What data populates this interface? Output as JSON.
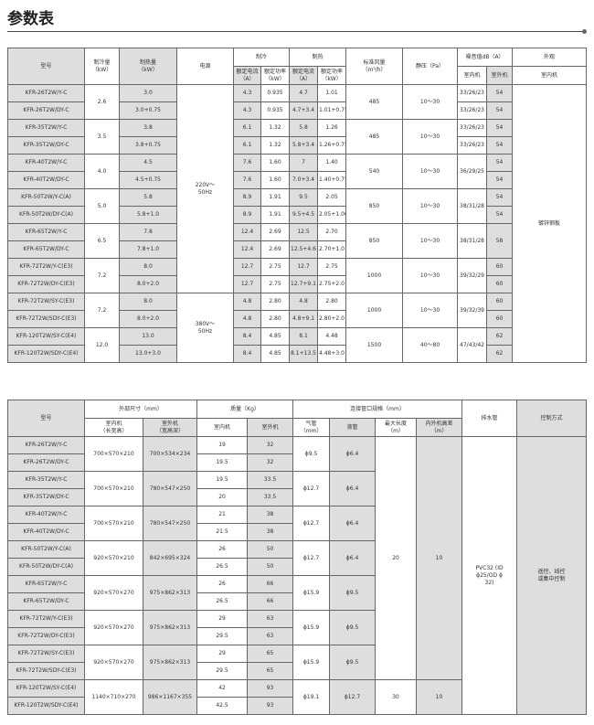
{
  "title": "参数表",
  "table1": {
    "headers": {
      "model": "型号",
      "cool": "制冷量\n（kW）",
      "heat": "制热量\n（kW）",
      "power": "电源",
      "cooling": "制冷",
      "heating": "制热",
      "current": "额定电流\n（A）",
      "pw": "额定功率\n（kW）",
      "airflow": "标准风量\n（m³/h）",
      "pressure": "静压（Pa）",
      "noise": "噪音值dB（A）",
      "indoor": "室内机",
      "outdoor": "室外机",
      "appearance": "外观",
      "app_sub": "室内机"
    },
    "power_groups": [
      "220V～\n50Hz",
      "380V～\n50Hz"
    ],
    "appearance": "镀锌钢板",
    "pairs": [
      {
        "cool": "2.6",
        "airflow": "485",
        "pressure": "10～30",
        "noise_in": [
          "33/26/23",
          "33/26/23"
        ],
        "noise_out": [
          "54",
          "54"
        ],
        "rows": [
          {
            "model": "KFR-26T2W/Y-C",
            "heat": "3.0",
            "cc": "4.3",
            "cp": "0.935",
            "hc": "4.7",
            "hp": "1.01"
          },
          {
            "model": "KFR-26T2W/DY-C",
            "heat": "3.0+0.75",
            "cc": "4.3",
            "cp": "0.935",
            "hc": "4.7+3.4",
            "hp": "1.01+0.75"
          }
        ]
      },
      {
        "cool": "3.5",
        "airflow": "485",
        "pressure": "10～30",
        "noise_in": [
          "33/26/23",
          "33/26/23"
        ],
        "noise_out": [
          "54",
          "54"
        ],
        "rows": [
          {
            "model": "KFR-35T2W/Y-C",
            "heat": "3.8",
            "cc": "6.1",
            "cp": "1.32",
            "hc": "5.8",
            "hp": "1.26"
          },
          {
            "model": "KFR-35T2W/DY-C",
            "heat": "3.8+0.75",
            "cc": "6.1",
            "cp": "1.32",
            "hc": "5.8+3.4",
            "hp": "1.26+0.75"
          }
        ]
      },
      {
        "cool": "4.0",
        "airflow": "540",
        "pressure": "10～30",
        "noise_in": "36/29/25",
        "noise_out": [
          "54",
          "54"
        ],
        "rows": [
          {
            "model": "KFR-40T2W/Y-C",
            "heat": "4.5",
            "cc": "7.6",
            "cp": "1.60",
            "hc": "7",
            "hp": "1.40"
          },
          {
            "model": "KFR-40T2W/DY-C",
            "heat": "4.5+0.75",
            "cc": "7.6",
            "cp": "1.60",
            "hc": "7.0+3.4",
            "hp": "1.40+0.75"
          }
        ]
      },
      {
        "cool": "5.0",
        "airflow": "850",
        "pressure": "10～30",
        "noise_in": "38/31/28",
        "noise_out": [
          "54",
          "54"
        ],
        "rows": [
          {
            "model": "KFR-50T2W/Y-C(A)",
            "heat": "5.8",
            "cc": "8.9",
            "cp": "1.91",
            "hc": "9.5",
            "hp": "2.05"
          },
          {
            "model": "KFR-50T2W/DY-C(A)",
            "heat": "5.8+1.0",
            "cc": "8.9",
            "cp": "1.91",
            "hc": "9.5+4.5",
            "hp": "2.05+1.00"
          }
        ]
      },
      {
        "cool": "6.5",
        "airflow": "850",
        "pressure": "10～30",
        "noise_in": "38/31/28",
        "noise_out": "58",
        "rows": [
          {
            "model": "KFR-65T2W/Y-C",
            "heat": "7.8",
            "cc": "12.4",
            "cp": "2.69",
            "hc": "12.5",
            "hp": "2.70"
          },
          {
            "model": "KFR-65T2W/DY-C",
            "heat": "7.8+1.0",
            "cc": "12.4",
            "cp": "2.69",
            "hc": "12.5+4.6",
            "hp": "2.70+1.0"
          }
        ]
      },
      {
        "cool": "7.2",
        "airflow": "1000",
        "pressure": "10～30",
        "noise_in": "39/32/29",
        "noise_out": [
          "60",
          "60"
        ],
        "rows": [
          {
            "model": "KFR-72T2W/Y-C(E3)",
            "heat": "8.0",
            "cc": "12.7",
            "cp": "2.75",
            "hc": "12.7",
            "hp": "2.75"
          },
          {
            "model": "KFR-72T2W/DY-C(E3)",
            "heat": "8.0+2.0",
            "cc": "12.7",
            "cp": "2.75",
            "hc": "12.7+9.1",
            "hp": "2.75+2.0"
          }
        ]
      },
      {
        "cool": "7.2",
        "airflow": "1000",
        "pressure": "10～30",
        "noise_in": "39/32/39",
        "noise_out": [
          "60",
          "60"
        ],
        "rows": [
          {
            "model": "KFR-72T2W/SY-C(E3)",
            "heat": "8.0",
            "cc": "4.8",
            "cp": "2.80",
            "hc": "4.8",
            "hp": "2.80"
          },
          {
            "model": "KFR-72T2W/SDY-C(E3)",
            "heat": "8.0+2.0",
            "cc": "4.8",
            "cp": "2.80",
            "hc": "4.8+9.1",
            "hp": "2.80+2.0"
          }
        ]
      },
      {
        "cool": "12.0",
        "airflow": "1500",
        "pressure": "40～80",
        "noise_in": "47/43/42",
        "noise_out": [
          "62",
          "62"
        ],
        "rows": [
          {
            "model": "KFR-120T2W/SY-C(E4)",
            "heat": "13.0",
            "cc": "8.4",
            "cp": "4.85",
            "hc": "8.1",
            "hp": "4.48"
          },
          {
            "model": "KFR-120T2W/SDY-C(E4)",
            "heat": "13.0+3.0",
            "cc": "8.4",
            "cp": "4.85",
            "hc": "8.1+13.5",
            "hp": "4.48+3.0"
          }
        ]
      }
    ]
  },
  "table2": {
    "headers": {
      "model": "型号",
      "dims": "外部尺寸（mm）",
      "dim_in": "室内机\n（长宽高）",
      "dim_out": "室外机\n（宽高深）",
      "weight": "质量（Kg）",
      "w_in": "室内机",
      "w_out": "室外机",
      "pipe": "连接管口规格（mm）",
      "gas": "气管\n（mm）",
      "liquid": "液管",
      "maxlen": "最大长度\n（m）",
      "height": "内外机高差\n（m）",
      "drain": "排水管",
      "control": "控制方式"
    },
    "drain": "PVC32 (ID\nϕ25/OD ϕ\n32)",
    "control": "遥控、线控\n或集中控制",
    "len_groups": [
      {
        "maxlen": "20",
        "height": "10"
      },
      {
        "maxlen": "30",
        "height": "10"
      }
    ],
    "pairs": [
      {
        "dim_in": "700×570×210",
        "dim_out": "700×534×234",
        "gas": "ϕ9.5",
        "liquid": "ϕ6.4",
        "rows": [
          {
            "model": "KFR-26T2W/Y-C",
            "w_in": "19",
            "w_out": "32"
          },
          {
            "model": "KFR-26T2W/DY-C",
            "w_in": "19.5",
            "w_out": "32"
          }
        ]
      },
      {
        "dim_in": "700×570×210",
        "dim_out": "780×547×250",
        "gas": "ϕ12.7",
        "liquid": "ϕ6.4",
        "rows": [
          {
            "model": "KFR-35T2W/Y-C",
            "w_in": "19.5",
            "w_out": "33.5"
          },
          {
            "model": "KFR-35T2W/DY-C",
            "w_in": "20",
            "w_out": "33.5"
          }
        ]
      },
      {
        "dim_in": "700×570×210",
        "dim_out": "780×547×250",
        "gas": "ϕ12.7",
        "liquid": "ϕ6.4",
        "rows": [
          {
            "model": "KFR-40T2W/Y-C",
            "w_in": "21",
            "w_out": "38"
          },
          {
            "model": "KFR-40T2W/DY-C",
            "w_in": "21.5",
            "w_out": "38"
          }
        ]
      },
      {
        "dim_in": "920×570×210",
        "dim_out": "842×695×324",
        "gas": "ϕ12.7",
        "liquid": "ϕ6.4",
        "rows": [
          {
            "model": "KFR-50T2W/Y-C(A)",
            "w_in": "26",
            "w_out": "50"
          },
          {
            "model": "KFR-50T2W/DY-C(A)",
            "w_in": "26.5",
            "w_out": "50"
          }
        ]
      },
      {
        "dim_in": "920×570×270",
        "dim_out": "975×862×313",
        "gas": "ϕ15.9",
        "liquid": "ϕ9.5",
        "rows": [
          {
            "model": "KFR-65T2W/Y-C",
            "w_in": "26",
            "w_out": "66"
          },
          {
            "model": "KFR-65T2W/DY-C",
            "w_in": "26.5",
            "w_out": "66"
          }
        ]
      },
      {
        "dim_in": "920×570×270",
        "dim_out": "975×862×313",
        "gas": "ϕ15.9",
        "liquid": "ϕ9.5",
        "rows": [
          {
            "model": "KFR-72T2W/Y-C(E3)",
            "w_in": "29",
            "w_out": "63"
          },
          {
            "model": "KFR-72T2W/DY-C(E3)",
            "w_in": "29.5",
            "w_out": "63"
          }
        ]
      },
      {
        "dim_in": "920×570×270",
        "dim_out": "975×862×313",
        "gas": "ϕ15.9",
        "liquid": "ϕ9.5",
        "rows": [
          {
            "model": "KFR-72T2W/SY-C(E3)",
            "w_in": "29",
            "w_out": "65"
          },
          {
            "model": "KFR-72T2W/SDY-C(E3)",
            "w_in": "29.5",
            "w_out": "65"
          }
        ]
      },
      {
        "dim_in": "1140×710×270",
        "dim_out": "986×1167×355",
        "gas": "ϕ19.1",
        "liquid": "ϕ12.7",
        "rows": [
          {
            "model": "KFR-120T2W/SY-C(E4)",
            "w_in": "42",
            "w_out": "93"
          },
          {
            "model": "KFR-120T2W/SDY-C(E4)",
            "w_in": "42.5",
            "w_out": "93"
          }
        ]
      }
    ]
  }
}
